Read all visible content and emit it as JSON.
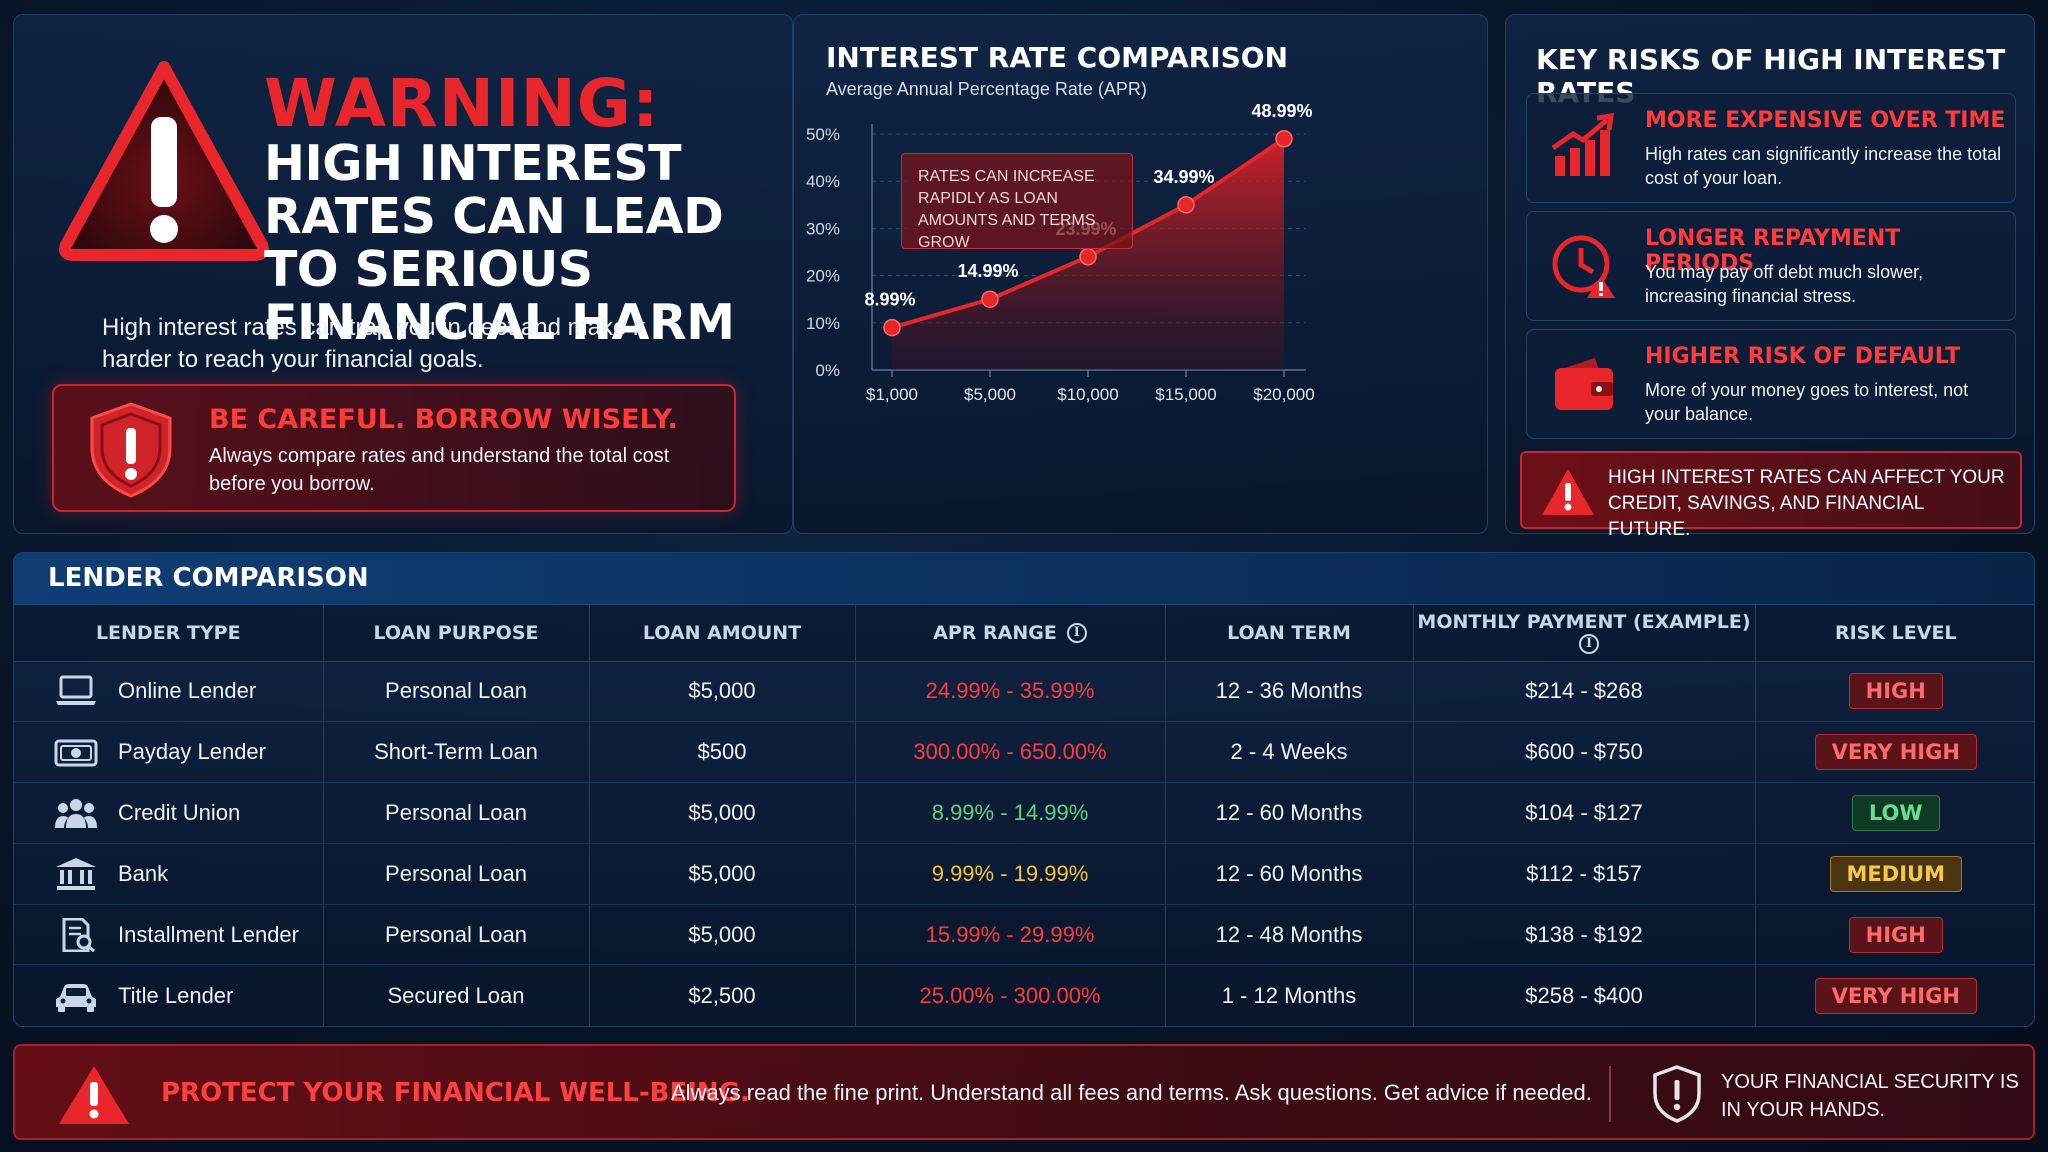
{
  "warning": {
    "title": "WARNING:",
    "headline": "High interest rates can lead to serious financial harm",
    "description": "High interest rates can trap you in debt and make it harder to reach your financial goals.",
    "careful_title": "BE CAREFUL. BORROW WISELY.",
    "careful_text": "Always compare rates and understand the total cost before you borrow."
  },
  "chart": {
    "title": "INTEREST RATE COMPARISON",
    "subtitle": "Average Annual Percentage Rate (APR)",
    "note": "Rates can increase rapidly as loan amounts and terms grow"
  },
  "chart_data": {
    "type": "area",
    "categories": [
      "$1,000",
      "$5,000",
      "$10,000",
      "$15,000",
      "$20,000"
    ],
    "values": [
      8.99,
      14.99,
      23.99,
      34.99,
      48.99
    ],
    "data_labels": [
      "8.99%",
      "14.99%",
      "23.99%",
      "34.99%",
      "48.99%"
    ],
    "y_ticks": [
      "0%",
      "10%",
      "20%",
      "30%",
      "40%",
      "50%"
    ],
    "ylim": [
      0,
      50
    ],
    "title": "INTEREST RATE COMPARISON",
    "subtitle": "Average Annual Percentage Rate (APR)",
    "grid": true,
    "color": "#e5262b"
  },
  "risks": {
    "header": "KEY RISKS OF HIGH INTEREST RATES",
    "items": [
      {
        "title": "MORE EXPENSIVE OVER TIME",
        "text": "High rates can significantly increase the total cost of your loan.",
        "icon": "rising-bars-icon"
      },
      {
        "title": "LONGER REPAYMENT PERIODS",
        "text": "You may pay off debt much slower, increasing financial stress.",
        "icon": "clock-warning-icon"
      },
      {
        "title": "HIGHER RISK OF DEFAULT",
        "text": "More of your money goes to interest, not your balance.",
        "icon": "wallet-icon"
      }
    ],
    "alert": "High interest rates can affect your credit, savings, and financial future."
  },
  "table": {
    "title": "LENDER COMPARISON",
    "headers": [
      "LENDER TYPE",
      "LOAN PURPOSE",
      "LOAN AMOUNT",
      "APR RANGE",
      "LOAN TERM",
      "MONTHLY PAYMENT (EXAMPLE)",
      "RISK LEVEL"
    ],
    "info_glyph": "i",
    "rows": [
      {
        "lender": "Online Lender",
        "purpose": "Personal Loan",
        "amount": "$5,000",
        "apr": "24.99% - 35.99%",
        "term": "12 - 36 Months",
        "payment": "$214 - $268",
        "risk": "HIGH",
        "icon": "laptop-icon"
      },
      {
        "lender": "Payday Lender",
        "purpose": "Short-Term Loan",
        "amount": "$500",
        "apr": "300.00% - 650.00%",
        "term": "2 - 4 Weeks",
        "payment": "$600 - $750",
        "risk": "VERY HIGH",
        "icon": "cash-icon"
      },
      {
        "lender": "Credit Union",
        "purpose": "Personal Loan",
        "amount": "$5,000",
        "apr": "8.99% - 14.99%",
        "term": "12 - 60 Months",
        "payment": "$104 - $127",
        "risk": "LOW",
        "icon": "people-icon"
      },
      {
        "lender": "Bank",
        "purpose": "Personal Loan",
        "amount": "$5,000",
        "apr": "9.99% - 19.99%",
        "term": "12 - 60 Months",
        "payment": "$112 - $157",
        "risk": "MEDIUM",
        "icon": "bank-icon"
      },
      {
        "lender": "Installment Lender",
        "purpose": "Personal Loan",
        "amount": "$5,000",
        "apr": "15.99% - 29.99%",
        "term": "12 - 48 Months",
        "payment": "$138 - $192",
        "risk": "HIGH",
        "icon": "document-search-icon"
      },
      {
        "lender": "Title Lender",
        "purpose": "Secured Loan",
        "amount": "$2,500",
        "apr": "25.00% - 300.00%",
        "term": "1 - 12 Months",
        "payment": "$258 - $400",
        "risk": "VERY HIGH",
        "icon": "car-icon"
      }
    ],
    "apr_colors": [
      "#ff3c3c",
      "#ff3c3c",
      "#5fd37f",
      "#f5c23a",
      "#ff3c3c",
      "#ff3c3c"
    ]
  },
  "footer": {
    "title": "PROTECT YOUR FINANCIAL WELL-BEING.",
    "text": "Always read the fine print. Understand all fees and terms. Ask questions. Get advice if needed.",
    "security": "YOUR FINANCIAL SECURITY IS IN YOUR HANDS."
  },
  "colors": {
    "accent_red": "#e8262b",
    "background": "#081529",
    "low": "#5fd37f",
    "medium": "#f5c23a"
  }
}
